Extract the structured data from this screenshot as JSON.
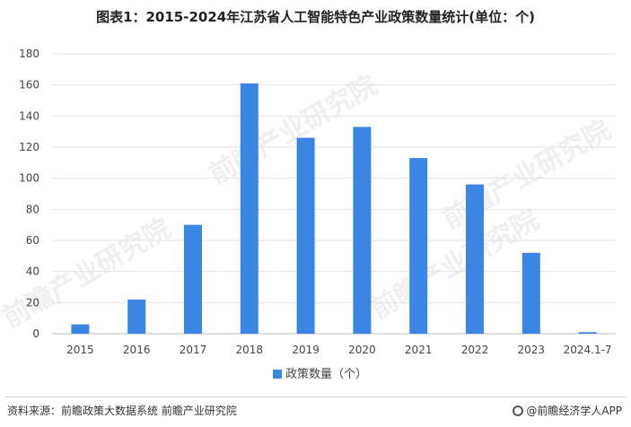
{
  "title": "图表1：2015-2024年江苏省人工智能特色产业政策数量统计(单位：个)",
  "footer": {
    "source": "资料来源：前瞻政策大数据系统 前瞻产业研究院",
    "brand": "@前瞻经济学人APP"
  },
  "watermark": "前瞻产业研究院",
  "chart_data": {
    "type": "bar",
    "title": "图表1：2015-2024年江苏省人工智能特色产业政策数量统计(单位：个)",
    "categories": [
      "2015",
      "2016",
      "2017",
      "2018",
      "2019",
      "2020",
      "2021",
      "2022",
      "2023",
      "2024.1-7"
    ],
    "series": [
      {
        "name": "政策数量（个）",
        "values": [
          6,
          22,
          70,
          161,
          126,
          133,
          113,
          96,
          52,
          1
        ],
        "color": "#3b86e4"
      }
    ],
    "ylim": [
      0,
      180
    ],
    "yticks": [
      0,
      20,
      40,
      60,
      80,
      100,
      120,
      140,
      160,
      180
    ],
    "grid": true,
    "legend_position": "bottom"
  }
}
